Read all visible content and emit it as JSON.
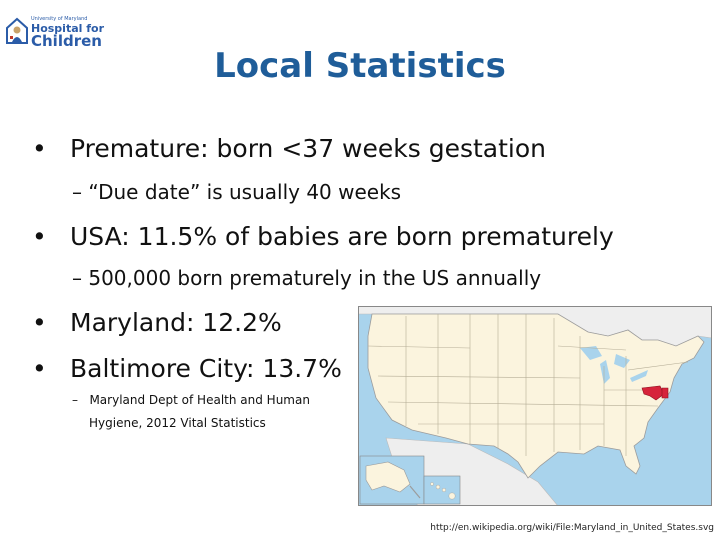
{
  "logo": {
    "small_text": "University of Maryland",
    "line1": "Hospital for",
    "line2": "Children",
    "colors": {
      "blue": "#2b5ca8",
      "tan": "#c8a26a",
      "red": "#c0392b"
    }
  },
  "title": "Local Statistics",
  "colors": {
    "title": "#1f5d99",
    "highlight": "#d6243b",
    "map_land": "#fbf4de",
    "map_water": "#a9d3ec"
  },
  "bullets": [
    {
      "text": "Premature: born <37 weeks gestation",
      "sub": [
        "– “Due date” is usually 40 weeks"
      ]
    },
    {
      "text": "USA: 11.5% of babies are born prematurely",
      "sub": [
        "– 500,000 born prematurely in the US annually"
      ]
    },
    {
      "text": "Maryland: 12.2%",
      "sub": []
    },
    {
      "text": "Baltimore City: 13.7%",
      "sub": []
    }
  ],
  "note": {
    "dash": "–",
    "line1": "Maryland Dept of Health and Human",
    "line2": "Hygiene, 2012 Vital Statistics"
  },
  "map": {
    "icon": "us-map-maryland-highlighted"
  },
  "source_url": "http://en.wikipedia.org/wiki/File:Maryland_in_United_States.svg"
}
